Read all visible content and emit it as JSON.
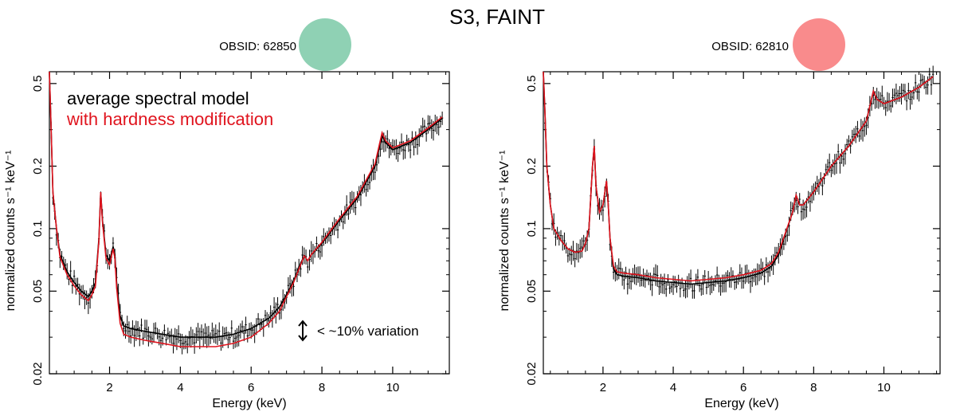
{
  "figure": {
    "title": "S3, FAINT"
  },
  "colors": {
    "data": "#000000",
    "average_model": "#000000",
    "hardness_model": "#e0141e",
    "obs1_marker": "#8fd1b4",
    "obs2_marker": "#f98b8c"
  },
  "legend": {
    "line1": "average spectral model",
    "line2": "with hardness modification"
  },
  "annotation": {
    "text": "< ~10% variation",
    "icon": "double-arrow-icon"
  },
  "chart_data": [
    {
      "type": "line",
      "obsid_label": "OBSID: 62850",
      "xlabel": "Energy (keV)",
      "ylabel": "normalized counts s⁻¹ keV⁻¹",
      "xlim": [
        0.3,
        11.6
      ],
      "ylim": [
        0.02,
        0.57
      ],
      "yscale": "log",
      "x_ticks": [
        2,
        4,
        6,
        8,
        10
      ],
      "y_ticks": [
        0.02,
        0.05,
        0.1,
        0.2,
        0.5
      ],
      "y_tick_labels": [
        "0.02",
        "0.05",
        "0.1",
        "0.2",
        "0.5"
      ],
      "series": [
        {
          "name": "average spectral model",
          "x": [
            0.3,
            0.35,
            0.4,
            0.5,
            0.6,
            0.8,
            1.0,
            1.2,
            1.4,
            1.5,
            1.6,
            1.7,
            1.75,
            1.8,
            1.9,
            2.0,
            2.1,
            2.15,
            2.2,
            2.3,
            2.4,
            2.6,
            3.0,
            3.5,
            4.0,
            4.5,
            5.0,
            5.5,
            6.0,
            6.5,
            6.8,
            7.0,
            7.2,
            7.4,
            7.5,
            7.6,
            7.7,
            8.0,
            8.5,
            9.0,
            9.5,
            9.7,
            9.8,
            10.0,
            10.5,
            11.0,
            11.4
          ],
          "y": [
            0.55,
            0.3,
            0.15,
            0.1,
            0.075,
            0.062,
            0.055,
            0.05,
            0.047,
            0.05,
            0.055,
            0.09,
            0.15,
            0.11,
            0.075,
            0.07,
            0.082,
            0.075,
            0.055,
            0.038,
            0.034,
            0.033,
            0.032,
            0.031,
            0.03,
            0.03,
            0.03,
            0.031,
            0.033,
            0.037,
            0.042,
            0.048,
            0.056,
            0.068,
            0.074,
            0.07,
            0.075,
            0.085,
            0.11,
            0.14,
            0.2,
            0.28,
            0.26,
            0.24,
            0.26,
            0.3,
            0.34
          ]
        },
        {
          "name": "with hardness modification",
          "x": [
            0.3,
            0.35,
            0.4,
            0.5,
            0.6,
            0.8,
            1.0,
            1.2,
            1.4,
            1.5,
            1.6,
            1.7,
            1.75,
            1.8,
            1.9,
            2.0,
            2.1,
            2.15,
            2.2,
            2.3,
            2.4,
            2.6,
            3.0,
            3.5,
            4.0,
            4.5,
            5.0,
            5.5,
            6.0,
            6.5,
            6.8,
            7.0,
            7.2,
            7.4,
            7.5,
            7.6,
            7.7,
            8.0,
            8.5,
            9.0,
            9.5,
            9.7,
            9.8,
            10.0,
            10.5,
            11.0,
            11.4
          ],
          "y": [
            0.55,
            0.3,
            0.15,
            0.1,
            0.073,
            0.06,
            0.053,
            0.048,
            0.045,
            0.048,
            0.053,
            0.088,
            0.15,
            0.108,
            0.072,
            0.067,
            0.08,
            0.072,
            0.052,
            0.035,
            0.031,
            0.03,
            0.029,
            0.028,
            0.027,
            0.027,
            0.027,
            0.028,
            0.03,
            0.035,
            0.04,
            0.047,
            0.055,
            0.067,
            0.074,
            0.07,
            0.075,
            0.086,
            0.112,
            0.143,
            0.205,
            0.29,
            0.265,
            0.245,
            0.265,
            0.305,
            0.345
          ]
        }
      ]
    },
    {
      "type": "line",
      "obsid_label": "OBSID: 62810",
      "xlabel": "Energy (keV)",
      "ylabel": "normalized counts s⁻¹ keV⁻¹",
      "xlim": [
        0.3,
        11.6
      ],
      "ylim": [
        0.02,
        0.57
      ],
      "yscale": "log",
      "x_ticks": [
        2,
        4,
        6,
        8,
        10
      ],
      "y_ticks": [
        0.02,
        0.05,
        0.1,
        0.2,
        0.5
      ],
      "y_tick_labels": [
        "0.02",
        "0.05",
        "0.1",
        "0.2",
        "0.5"
      ],
      "series": [
        {
          "name": "average spectral model",
          "x": [
            0.3,
            0.35,
            0.4,
            0.5,
            0.6,
            0.8,
            1.0,
            1.2,
            1.4,
            1.5,
            1.6,
            1.7,
            1.75,
            1.8,
            1.9,
            2.0,
            2.1,
            2.15,
            2.2,
            2.3,
            2.4,
            2.6,
            3.0,
            3.5,
            4.0,
            4.5,
            5.0,
            5.5,
            6.0,
            6.5,
            6.8,
            7.0,
            7.2,
            7.4,
            7.5,
            7.6,
            7.7,
            8.0,
            8.5,
            9.0,
            9.5,
            9.7,
            9.8,
            10.0,
            10.5,
            11.0,
            11.4
          ],
          "y": [
            0.55,
            0.35,
            0.2,
            0.13,
            0.1,
            0.088,
            0.08,
            0.077,
            0.078,
            0.085,
            0.1,
            0.2,
            0.25,
            0.16,
            0.12,
            0.13,
            0.17,
            0.13,
            0.09,
            0.064,
            0.06,
            0.059,
            0.058,
            0.056,
            0.055,
            0.054,
            0.055,
            0.056,
            0.058,
            0.061,
            0.066,
            0.075,
            0.095,
            0.12,
            0.145,
            0.13,
            0.13,
            0.15,
            0.2,
            0.25,
            0.33,
            0.46,
            0.42,
            0.4,
            0.43,
            0.48,
            0.54
          ]
        },
        {
          "name": "with hardness modification",
          "x": [
            0.3,
            0.35,
            0.4,
            0.5,
            0.6,
            0.8,
            1.0,
            1.2,
            1.4,
            1.5,
            1.6,
            1.7,
            1.75,
            1.8,
            1.9,
            2.0,
            2.1,
            2.15,
            2.2,
            2.3,
            2.4,
            2.6,
            3.0,
            3.5,
            4.0,
            4.5,
            5.0,
            5.5,
            6.0,
            6.5,
            6.8,
            7.0,
            7.2,
            7.4,
            7.5,
            7.6,
            7.7,
            8.0,
            8.5,
            9.0,
            9.5,
            9.7,
            9.8,
            10.0,
            10.5,
            11.0,
            11.4
          ],
          "y": [
            0.55,
            0.35,
            0.2,
            0.13,
            0.1,
            0.088,
            0.08,
            0.077,
            0.078,
            0.085,
            0.1,
            0.2,
            0.25,
            0.16,
            0.12,
            0.13,
            0.17,
            0.13,
            0.09,
            0.066,
            0.062,
            0.061,
            0.06,
            0.058,
            0.057,
            0.056,
            0.057,
            0.058,
            0.06,
            0.063,
            0.068,
            0.077,
            0.096,
            0.12,
            0.145,
            0.13,
            0.13,
            0.15,
            0.2,
            0.25,
            0.33,
            0.46,
            0.42,
            0.4,
            0.43,
            0.48,
            0.54
          ]
        }
      ]
    }
  ]
}
